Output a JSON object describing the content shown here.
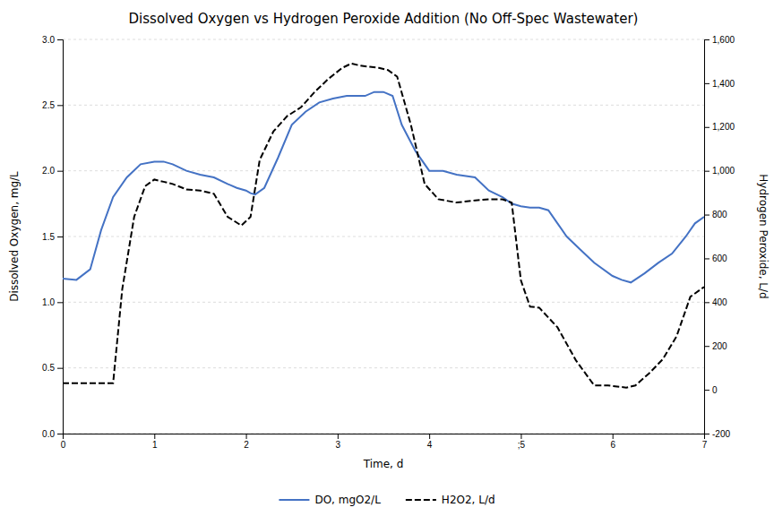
{
  "chart_data": {
    "type": "line",
    "title": "Dissolved Oxygen vs Hydrogen Peroxide Addition (No Off-Spec Wastewater)",
    "x_label": "Time, d",
    "y_label": "Dissolved Oxygen, mg/L",
    "y2_label": "Hydrogen Peroxide, L/d",
    "xlim": [
      0,
      7
    ],
    "ylim": [
      0.0,
      3.0
    ],
    "y2lim": [
      -200,
      1600
    ],
    "xticks": [
      0,
      1,
      2,
      3,
      4,
      {
        "value": 5,
        "label": ";5"
      },
      6,
      7
    ],
    "yticks": [
      {
        "value": 0.0,
        "label": "0.0"
      },
      0.5,
      {
        "value": 1.0,
        "label": "1.0"
      },
      1.5,
      {
        "value": 2.0,
        "label": "2.0"
      },
      2.5,
      {
        "value": 3.0,
        "label": "3.0"
      }
    ],
    "y2ticks": [
      -200,
      0,
      200,
      400,
      600,
      800,
      {
        "value": 1000,
        "label": "1,000"
      },
      {
        "value": 1200,
        "label": "1,200"
      },
      {
        "value": 1400,
        "label": "1,400"
      },
      {
        "value": 1600,
        "label": "1,600"
      }
    ],
    "grid": true,
    "legend": "bottom",
    "series": [
      {
        "name": "DO, mgO2/L",
        "color": "#4472C4",
        "line_style": "solid",
        "axis": "y",
        "x": [
          0.0,
          0.15,
          0.3,
          0.42,
          0.55,
          0.7,
          0.85,
          1.0,
          1.1,
          1.2,
          1.35,
          1.5,
          1.65,
          1.8,
          1.9,
          2.0,
          2.05,
          2.1,
          2.2,
          2.35,
          2.5,
          2.65,
          2.8,
          2.95,
          3.1,
          3.2,
          3.3,
          3.4,
          3.5,
          3.6,
          3.7,
          3.85,
          4.0,
          4.15,
          4.3,
          4.5,
          4.65,
          4.8,
          4.9,
          5.0,
          5.1,
          5.2,
          5.3,
          5.4,
          5.5,
          5.65,
          5.8,
          6.0,
          6.1,
          6.2,
          6.35,
          6.5,
          6.65,
          6.8,
          6.9,
          7.0
        ],
        "values": [
          1.18,
          1.17,
          1.25,
          1.55,
          1.8,
          1.95,
          2.05,
          2.07,
          2.07,
          2.05,
          2.0,
          1.97,
          1.95,
          1.9,
          1.87,
          1.85,
          1.83,
          1.82,
          1.87,
          2.1,
          2.35,
          2.45,
          2.52,
          2.55,
          2.57,
          2.57,
          2.57,
          2.6,
          2.6,
          2.57,
          2.35,
          2.15,
          2.0,
          2.0,
          1.97,
          1.95,
          1.85,
          1.8,
          1.75,
          1.73,
          1.72,
          1.72,
          1.7,
          1.6,
          1.5,
          1.4,
          1.3,
          1.2,
          1.17,
          1.15,
          1.22,
          1.3,
          1.37,
          1.5,
          1.6,
          1.65
        ]
      },
      {
        "name": "H2O2, L/d",
        "color": "#000000",
        "line_style": "dashed",
        "axis": "y2",
        "x": [
          0.0,
          0.1,
          0.2,
          0.32,
          0.45,
          0.55,
          0.65,
          0.78,
          0.9,
          1.0,
          1.1,
          1.2,
          1.35,
          1.5,
          1.65,
          1.8,
          1.95,
          2.05,
          2.15,
          2.3,
          2.45,
          2.6,
          2.75,
          2.9,
          3.05,
          3.15,
          3.25,
          3.35,
          3.45,
          3.55,
          3.65,
          3.8,
          3.95,
          4.1,
          4.3,
          4.5,
          4.65,
          4.8,
          4.9,
          5.0,
          5.1,
          5.2,
          5.4,
          5.6,
          5.8,
          5.95,
          6.05,
          6.15,
          6.25,
          6.4,
          6.55,
          6.7,
          6.85,
          7.0
        ],
        "values": [
          30,
          30,
          30,
          30,
          30,
          30,
          460,
          790,
          930,
          960,
          950,
          940,
          915,
          910,
          895,
          790,
          750,
          790,
          1050,
          1180,
          1250,
          1290,
          1360,
          1420,
          1470,
          1490,
          1480,
          1475,
          1470,
          1460,
          1430,
          1210,
          940,
          870,
          855,
          865,
          870,
          870,
          855,
          500,
          380,
          375,
          285,
          135,
          20,
          20,
          15,
          10,
          20,
          75,
          140,
          245,
          425,
          470
        ]
      }
    ]
  }
}
